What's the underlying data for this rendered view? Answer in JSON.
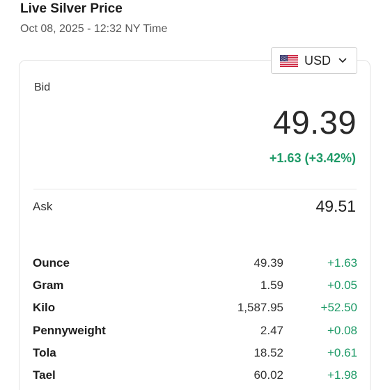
{
  "header": {
    "title": "Live Silver Price",
    "datetime": "Oct 08, 2025 - 12:32 NY Time"
  },
  "currency_select": {
    "selected": "USD",
    "flag_icon": "us-flag-icon"
  },
  "bid": {
    "label": "Bid",
    "value": "49.39",
    "change": "+1.63 (+3.42%)"
  },
  "ask": {
    "label": "Ask",
    "value": "49.51"
  },
  "units": [
    {
      "name": "Ounce",
      "price": "49.39",
      "change": "+1.63"
    },
    {
      "name": "Gram",
      "price": "1.59",
      "change": "+0.05"
    },
    {
      "name": "Kilo",
      "price": "1,587.95",
      "change": "+52.50"
    },
    {
      "name": "Pennyweight",
      "price": "2.47",
      "change": "+0.08"
    },
    {
      "name": "Tola",
      "price": "18.52",
      "change": "+0.61"
    },
    {
      "name": "Tael",
      "price": "60.02",
      "change": "+1.98"
    }
  ],
  "colors": {
    "positive": "#1e9a67",
    "text": "#1f1f1f",
    "muted": "#5b5b5b"
  }
}
